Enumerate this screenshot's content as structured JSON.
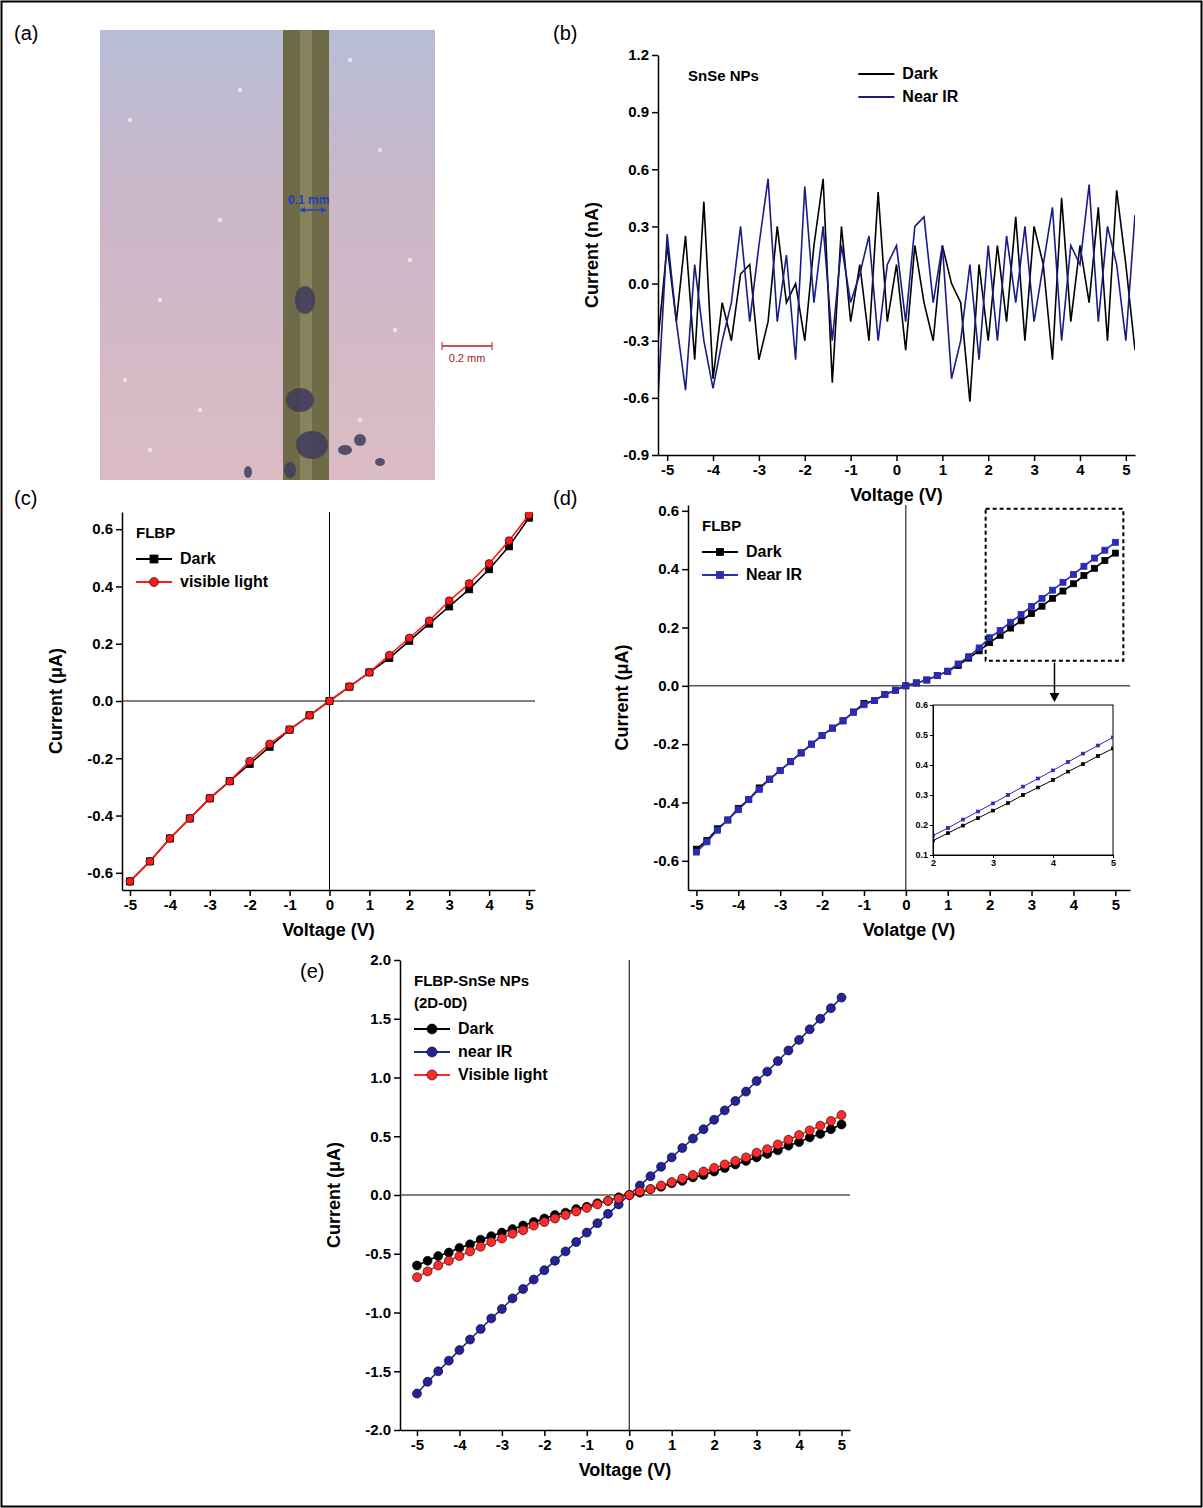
{
  "image_panel": {
    "panel_label": "(a)",
    "annotations": [
      "0.1 mm",
      "0.2 mm"
    ]
  },
  "chart_data": [
    {
      "type": "line",
      "panel_label": "(b)",
      "annotation": [
        "SnSe NPs"
      ],
      "xlabel": "Voltage (V)",
      "ylabel": "Current (nA)",
      "x": [
        -5.2,
        -5.0,
        -4.8,
        -4.6,
        -4.4,
        -4.2,
        -4.0,
        -3.8,
        -3.6,
        -3.4,
        -3.2,
        -3.0,
        -2.8,
        -2.6,
        -2.4,
        -2.2,
        -2.0,
        -1.8,
        -1.6,
        -1.4,
        -1.2,
        -1.0,
        -0.8,
        -0.6,
        -0.4,
        -0.2,
        0,
        0.2,
        0.4,
        0.6,
        0.8,
        1.0,
        1.2,
        1.4,
        1.6,
        1.8,
        2.0,
        2.2,
        2.4,
        2.6,
        2.8,
        3.0,
        3.2,
        3.4,
        3.6,
        3.8,
        4.0,
        4.2,
        4.4,
        4.6,
        4.8,
        5.0,
        5.2
      ],
      "series": [
        {
          "name": "Dark",
          "color": "#000000",
          "marker": "none",
          "values": [
            -0.3,
            0.2,
            -0.2,
            0.25,
            -0.4,
            0.43,
            -0.5,
            -0.1,
            -0.3,
            0.05,
            0.1,
            -0.4,
            -0.2,
            0.3,
            -0.1,
            0.0,
            -0.3,
            0.2,
            0.55,
            -0.52,
            0.3,
            -0.2,
            0.1,
            -0.3,
            0.48,
            -0.2,
            0.1,
            -0.35,
            0.2,
            -0.1,
            -0.3,
            0.2,
            0.0,
            -0.1,
            -0.62,
            0.1,
            -0.3,
            0.2,
            -0.2,
            0.35,
            -0.3,
            0.3,
            0.1,
            -0.4,
            0.45,
            -0.2,
            0.2,
            -0.1,
            0.4,
            -0.3,
            0.49,
            0.1,
            -0.35
          ]
        },
        {
          "name": "Near IR",
          "color": "#1a1a8c",
          "marker": "none",
          "values": [
            -0.6,
            0.26,
            -0.2,
            -0.56,
            0.1,
            -0.3,
            -0.55,
            -0.3,
            -0.1,
            0.3,
            -0.2,
            0.2,
            0.55,
            -0.2,
            0.15,
            -0.4,
            0.51,
            -0.1,
            0.3,
            -0.3,
            0.2,
            -0.1,
            0.05,
            0.25,
            -0.3,
            0.1,
            0.2,
            -0.2,
            0.3,
            0.35,
            -0.1,
            0.2,
            -0.5,
            -0.3,
            0.1,
            -0.4,
            0.2,
            -0.3,
            0.25,
            -0.1,
            0.3,
            -0.2,
            0.1,
            0.4,
            -0.3,
            0.2,
            0.1,
            0.52,
            -0.2,
            0.3,
            0.1,
            -0.3,
            0.36
          ]
        }
      ],
      "xlim": [
        -5.2,
        5.2
      ],
      "ylim": [
        -0.9,
        1.2
      ],
      "xticks": [
        -5,
        -4,
        -3,
        -2,
        -1,
        0,
        1,
        2,
        3,
        4,
        5
      ],
      "yticks": [
        -0.9,
        -0.6,
        -0.3,
        {
          "value": 0,
          "label": "0.0"
        },
        0.3,
        0.6,
        0.9,
        1.2
      ],
      "legend": "upper center",
      "grid": false
    },
    {
      "type": "line",
      "panel_label": "(c)",
      "annotation": [
        "FLBP"
      ],
      "xlabel": "Voltage (V)",
      "ylabel": "Current (μA)",
      "x": [
        -5,
        -4.5,
        -4,
        -3.5,
        -3,
        -2.5,
        -2,
        -1.5,
        -1,
        -0.5,
        0,
        0.5,
        1,
        1.5,
        2,
        2.5,
        3,
        3.5,
        4,
        4.5,
        5
      ],
      "series": [
        {
          "name": "Dark",
          "color": "#000000",
          "marker": "square",
          "values": [
            -0.63,
            -0.56,
            -0.48,
            -0.41,
            -0.34,
            -0.28,
            -0.22,
            -0.16,
            -0.1,
            -0.05,
            0,
            0.05,
            0.1,
            0.15,
            0.21,
            0.27,
            0.33,
            0.39,
            0.46,
            0.54,
            0.64
          ]
        },
        {
          "name": "visible light",
          "color": "#ff1a1a",
          "marker": "circle",
          "values": [
            -0.63,
            -0.56,
            -0.48,
            -0.41,
            -0.34,
            -0.28,
            -0.21,
            -0.15,
            -0.1,
            -0.05,
            0,
            0.05,
            0.1,
            0.16,
            0.22,
            0.28,
            0.35,
            0.41,
            0.48,
            0.56,
            0.65
          ]
        }
      ],
      "xlim": [
        -5.2,
        5.15
      ],
      "ylim": [
        -0.66,
        0.66
      ],
      "xticks": [
        -5,
        -4,
        -3,
        -2,
        -1,
        0,
        1,
        2,
        3,
        4,
        5
      ],
      "yticks": [
        -0.6,
        -0.4,
        -0.2,
        {
          "value": 0,
          "label": "0.0"
        },
        0.2,
        0.4,
        0.6
      ],
      "legend": "upper left",
      "grid": false
    },
    {
      "type": "line",
      "panel_label": "(d)",
      "annotation": [
        "FLBP"
      ],
      "xlabel": "Volatge (V)",
      "ylabel": "Current (μA)",
      "x": [
        -5,
        -4.75,
        -4.5,
        -4.25,
        -4,
        -3.75,
        -3.5,
        -3.25,
        -3,
        -2.75,
        -2.5,
        -2.25,
        -2,
        -1.75,
        -1.5,
        -1.25,
        -1,
        -0.75,
        -0.5,
        -0.25,
        0,
        0.25,
        0.5,
        0.75,
        1,
        1.25,
        1.5,
        1.75,
        2,
        2.25,
        2.5,
        2.75,
        3,
        3.25,
        3.5,
        3.75,
        4,
        4.25,
        4.5,
        4.75,
        5
      ],
      "series": [
        {
          "name": "Dark",
          "color": "#000000",
          "marker": "square",
          "values": [
            -0.56,
            -0.53,
            -0.49,
            -0.46,
            -0.42,
            -0.39,
            -0.35,
            -0.32,
            -0.29,
            -0.26,
            -0.23,
            -0.2,
            -0.17,
            -0.145,
            -0.12,
            -0.09,
            -0.06,
            -0.05,
            -0.03,
            -0.015,
            0,
            0.01,
            0.02,
            0.035,
            0.05,
            0.07,
            0.095,
            0.12,
            0.148,
            0.173,
            0.198,
            0.223,
            0.248,
            0.273,
            0.3,
            0.325,
            0.35,
            0.378,
            0.403,
            0.43,
            0.455
          ]
        },
        {
          "name": "Near IR",
          "color": "#2b2bb5",
          "marker": "square",
          "values": [
            -0.57,
            -0.535,
            -0.495,
            -0.46,
            -0.425,
            -0.39,
            -0.355,
            -0.32,
            -0.29,
            -0.26,
            -0.23,
            -0.2,
            -0.17,
            -0.145,
            -0.12,
            -0.09,
            -0.065,
            -0.05,
            -0.03,
            -0.015,
            0,
            0.01,
            0.02,
            0.035,
            0.05,
            0.075,
            0.1,
            0.13,
            0.165,
            0.19,
            0.218,
            0.245,
            0.272,
            0.3,
            0.328,
            0.355,
            0.382,
            0.41,
            0.438,
            0.465,
            0.492
          ]
        }
      ],
      "xlim": [
        -5.2,
        5.35
      ],
      "ylim": [
        -0.7,
        0.62
      ],
      "xticks": [
        -5,
        -4,
        -3,
        -2,
        -1,
        0,
        1,
        2,
        3,
        4,
        5
      ],
      "yticks": [
        -0.6,
        -0.4,
        -0.2,
        {
          "value": 0,
          "label": "0.0"
        },
        0.2,
        0.4,
        0.6
      ],
      "legend": "upper left",
      "grid": false,
      "inset": {
        "xlim": [
          2,
          5
        ],
        "ylim": [
          0.1,
          0.6
        ],
        "xticks": [
          2,
          3,
          4,
          5
        ],
        "yticks": [
          0.1,
          0.2,
          0.3,
          0.4,
          0.5,
          0.6
        ]
      }
    },
    {
      "type": "line",
      "panel_label": "(e)",
      "annotation": [
        "FLBP-SnSe NPs",
        "(2D-0D)"
      ],
      "xlabel": "Voltage (V)",
      "ylabel": "Current (μA)",
      "x": [
        -5,
        -4.75,
        -4.5,
        -4.25,
        -4,
        -3.75,
        -3.5,
        -3.25,
        -3,
        -2.75,
        -2.5,
        -2.25,
        -2,
        -1.75,
        -1.5,
        -1.25,
        -1,
        -0.75,
        -0.5,
        -0.25,
        0,
        0.25,
        0.5,
        0.75,
        1,
        1.25,
        1.5,
        1.75,
        2,
        2.25,
        2.5,
        2.75,
        3,
        3.25,
        3.5,
        3.75,
        4,
        4.25,
        4.5,
        4.75,
        5
      ],
      "series": [
        {
          "name": "Dark",
          "color": "#000000",
          "marker": "circle",
          "values": [
            -0.6,
            -0.56,
            -0.52,
            -0.49,
            -0.45,
            -0.42,
            -0.38,
            -0.35,
            -0.32,
            -0.29,
            -0.26,
            -0.23,
            -0.2,
            -0.17,
            -0.15,
            -0.12,
            -0.1,
            -0.07,
            -0.05,
            -0.02,
            0,
            0.02,
            0.05,
            0.07,
            0.1,
            0.12,
            0.15,
            0.17,
            0.2,
            0.23,
            0.26,
            0.29,
            0.32,
            0.35,
            0.38,
            0.42,
            0.45,
            0.49,
            0.52,
            0.56,
            0.6
          ]
        },
        {
          "name": "near IR",
          "color": "#23239a",
          "marker": "circle",
          "values": [
            -1.69,
            -1.59,
            -1.5,
            -1.41,
            -1.32,
            -1.23,
            -1.14,
            -1.05,
            -0.97,
            -0.88,
            -0.8,
            -0.72,
            -0.64,
            -0.56,
            -0.48,
            -0.4,
            -0.32,
            -0.24,
            -0.16,
            -0.08,
            0,
            0.08,
            0.16,
            0.24,
            0.32,
            0.4,
            0.48,
            0.56,
            0.64,
            0.72,
            0.8,
            0.88,
            0.97,
            1.05,
            1.14,
            1.23,
            1.32,
            1.41,
            1.5,
            1.59,
            1.68
          ]
        },
        {
          "name": "Visible light",
          "color": "#ff2a2a",
          "marker": "circle",
          "values": [
            -0.7,
            -0.65,
            -0.6,
            -0.56,
            -0.52,
            -0.48,
            -0.44,
            -0.4,
            -0.37,
            -0.33,
            -0.3,
            -0.26,
            -0.23,
            -0.2,
            -0.17,
            -0.14,
            -0.11,
            -0.08,
            -0.05,
            -0.03,
            0,
            0.03,
            0.05,
            0.08,
            0.11,
            0.14,
            0.17,
            0.2,
            0.23,
            0.26,
            0.29,
            0.32,
            0.36,
            0.39,
            0.43,
            0.47,
            0.51,
            0.55,
            0.59,
            0.63,
            0.68
          ]
        }
      ],
      "xlim": [
        -5.4,
        5.2
      ],
      "ylim": [
        -2,
        2
      ],
      "xticks": [
        -5,
        -4,
        -3,
        -2,
        -1,
        0,
        1,
        2,
        3,
        4,
        5
      ],
      "yticks": [
        {
          "value": -2,
          "label": "-2.0"
        },
        -1.5,
        {
          "value": -1,
          "label": "-1.0"
        },
        -0.5,
        {
          "value": 0,
          "label": "0.0"
        },
        0.5,
        {
          "value": 1,
          "label": "1.0"
        },
        1.5,
        {
          "value": 2,
          "label": "2.0"
        }
      ],
      "legend": "upper left",
      "grid": false
    }
  ]
}
